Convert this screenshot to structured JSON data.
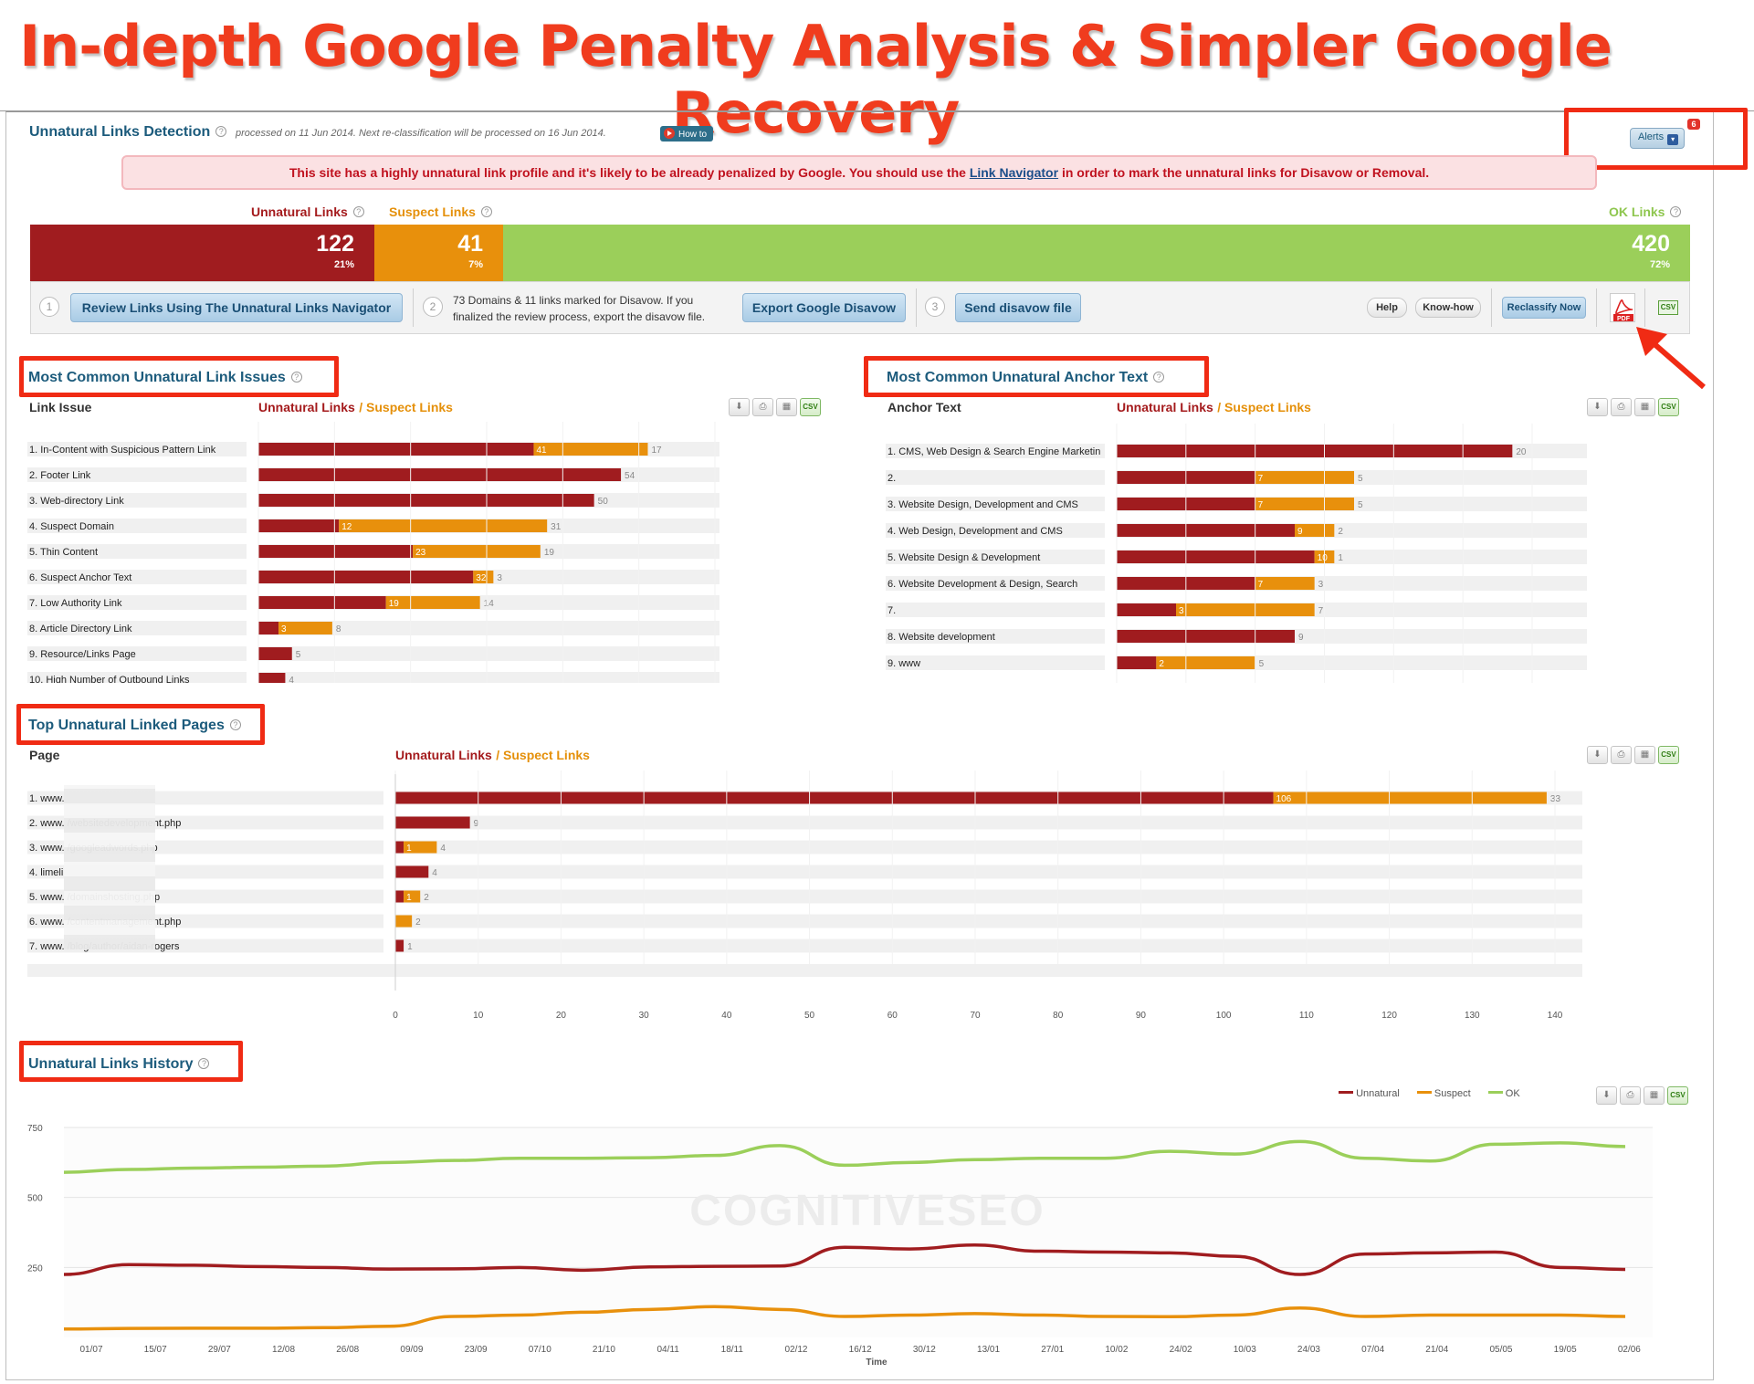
{
  "hero_title": "In-depth Google Penalty Analysis & Simpler Google Recovery",
  "header": {
    "title": "Unnatural Links Detection",
    "processed_text": "processed on 11 Jun 2014. Next re-classification will be processed on 16 Jun 2014.",
    "howto_label": "How to",
    "alerts_label": "Alerts",
    "alerts_count": "6"
  },
  "warning": {
    "text_before": "This site has a highly unnatural link profile and it's likely to be already penalized by Google. You should use the ",
    "link": "Link Navigator",
    "text_after": " in order to mark the unnatural links for Disavow or Removal."
  },
  "summary": {
    "unnatural_label": "Unnatural Links",
    "suspect_label": "Suspect Links",
    "ok_label": "OK Links",
    "unnatural_value": "122",
    "unnatural_pct": "21%",
    "suspect_value": "41",
    "suspect_pct": "7%",
    "ok_value": "420",
    "ok_pct": "72%",
    "colors": {
      "unnatural": "#a01c1f",
      "suspect": "#e8900c",
      "ok": "#9bcf5a"
    }
  },
  "actions": {
    "step1": "1",
    "step2": "2",
    "step3": "3",
    "review_btn": "Review Links Using The Unnatural Links Navigator",
    "disavow_text_1": "73 Domains & 11 links marked for Disavow. If you",
    "disavow_text_2": "finalized the review process, export the disavow file.",
    "export_btn": "Export Google Disavow",
    "send_btn": "Send disavow file",
    "help_btn": "Help",
    "knowhow_btn": "Know-how",
    "reclassify_btn": "Reclassify Now",
    "pdf_label": "PDF",
    "csv_label": "CSV"
  },
  "issues": {
    "title": "Most Common Unnatural Link Issues",
    "col_label": "Link Issue",
    "legend_unnatural": "Unnatural Links",
    "legend_suspect": "/ Suspect Links",
    "rows": [
      {
        "label": "1. In-Content with Suspicious Pattern Link",
        "unnatural": 41,
        "suspect": 17
      },
      {
        "label": "2. Footer Link",
        "unnatural": 54,
        "suspect": 0
      },
      {
        "label": "3. Web-directory Link",
        "unnatural": 50,
        "suspect": 0
      },
      {
        "label": "4. Suspect Domain",
        "unnatural": 12,
        "suspect": 31
      },
      {
        "label": "5. Thin Content",
        "unnatural": 23,
        "suspect": 19
      },
      {
        "label": "6. Suspect Anchor Text",
        "unnatural": 32,
        "suspect": 3
      },
      {
        "label": "7. Low Authority Link",
        "unnatural": 19,
        "suspect": 14
      },
      {
        "label": "8. Article Directory Link",
        "unnatural": 3,
        "suspect": 8
      },
      {
        "label": "9. Resource/Links Page",
        "unnatural": 5,
        "suspect": 0
      },
      {
        "label": "10. High Number of Outbound Links",
        "unnatural": 4,
        "suspect": 0
      }
    ]
  },
  "anchors": {
    "title": "Most Common Unnatural Anchor Text",
    "col_label": "Anchor Text",
    "legend_unnatural": "Unnatural Links",
    "legend_suspect": "/ Suspect Links",
    "rows": [
      {
        "label": "1. CMS, Web Design & Search Engine Marketin",
        "unnatural": 20,
        "suspect": 0
      },
      {
        "label": "2.",
        "unnatural": 7,
        "suspect": 5
      },
      {
        "label": "3. Website Design, Development and CMS",
        "unnatural": 7,
        "suspect": 5
      },
      {
        "label": "4. Web Design, Development and CMS",
        "unnatural": 9,
        "suspect": 2
      },
      {
        "label": "5. Website Design & Development",
        "unnatural": 10,
        "suspect": 1
      },
      {
        "label": "6. Website Development & Design, Search",
        "unnatural": 7,
        "suspect": 3
      },
      {
        "label": "7.",
        "unnatural": 3,
        "suspect": 7
      },
      {
        "label": "8. Website development",
        "unnatural": 9,
        "suspect": 0
      },
      {
        "label": "9. www",
        "unnatural": 2,
        "suspect": 5
      }
    ]
  },
  "pages": {
    "title": "Top Unnatural Linked Pages",
    "col_label": "Page",
    "legend_unnatural": "Unnatural Links",
    "legend_suspect": "/ Suspect Links",
    "rows": [
      {
        "label": "1. www.",
        "unnatural": 106,
        "suspect": 33
      },
      {
        "label": "2. www.                          /websitedevelopment.php",
        "unnatural": 9,
        "suspect": 0
      },
      {
        "label": "3. www.                          /googleadwords.php",
        "unnatural": 1,
        "suspect": 4
      },
      {
        "label": "4. limeli",
        "unnatural": 4,
        "suspect": 0
      },
      {
        "label": "5. www.                          /domainshosting.php",
        "unnatural": 1,
        "suspect": 2
      },
      {
        "label": "6. www.                          /contentmanagement.php",
        "unnatural": 0,
        "suspect": 2
      },
      {
        "label": "7. www.                          /blog/author/aidan-rogers",
        "unnatural": 1,
        "suspect": 0
      }
    ],
    "x_ticks": [
      0,
      10,
      20,
      30,
      40,
      50,
      60,
      70,
      80,
      90,
      100,
      110,
      120,
      130,
      140
    ]
  },
  "history": {
    "title": "Unnatural Links History",
    "legend": [
      "Unnatural",
      "Suspect",
      "OK"
    ],
    "watermark": "COGNITIVESEO",
    "x_label": "Time",
    "y_ticks": [
      750,
      500,
      250
    ]
  },
  "chart_data": [
    {
      "type": "bar",
      "title": "Most Common Unnatural Link Issues",
      "categories": [
        "1. In-Content with Suspicious Pattern Link",
        "2. Footer Link",
        "3. Web-directory Link",
        "4. Suspect Domain",
        "5. Thin Content",
        "6. Suspect Anchor Text",
        "7. Low Authority Link",
        "8. Article Directory Link",
        "9. Resource/Links Page",
        "10. High Number of Outbound Links"
      ],
      "series": [
        {
          "name": "Unnatural Links",
          "values": [
            41,
            54,
            50,
            12,
            23,
            32,
            19,
            3,
            5,
            4
          ]
        },
        {
          "name": "Suspect Links",
          "values": [
            17,
            0,
            0,
            31,
            19,
            3,
            14,
            8,
            0,
            0
          ]
        }
      ]
    },
    {
      "type": "bar",
      "title": "Most Common Unnatural Anchor Text",
      "categories": [
        "1. CMS, Web Design & Search Engine Marketin",
        "2.",
        "3. Website Design, Development and CMS",
        "4. Web Design, Development and CMS",
        "5. Website Design & Development",
        "6. Website Development & Design, Search",
        "7.",
        "8. Website development",
        "9. www"
      ],
      "series": [
        {
          "name": "Unnatural Links",
          "values": [
            20,
            7,
            7,
            9,
            10,
            7,
            3,
            9,
            2
          ]
        },
        {
          "name": "Suspect Links",
          "values": [
            0,
            5,
            5,
            2,
            1,
            3,
            7,
            0,
            5
          ]
        }
      ]
    },
    {
      "type": "bar",
      "title": "Top Unnatural Linked Pages",
      "categories": [
        "1",
        "2",
        "3",
        "4",
        "5",
        "6",
        "7"
      ],
      "series": [
        {
          "name": "Unnatural Links",
          "values": [
            106,
            9,
            1,
            4,
            1,
            0,
            1
          ]
        },
        {
          "name": "Suspect Links",
          "values": [
            33,
            0,
            4,
            0,
            2,
            2,
            0
          ]
        }
      ],
      "xlim": [
        0,
        140
      ]
    },
    {
      "type": "line",
      "title": "Unnatural Links History",
      "x": [
        "01/07",
        "15/07",
        "29/07",
        "12/08",
        "26/08",
        "09/09",
        "23/09",
        "07/10",
        "21/10",
        "04/11",
        "18/11",
        "02/12",
        "16/12",
        "30/12",
        "13/01",
        "27/01",
        "10/02",
        "24/02",
        "10/03",
        "24/03",
        "07/04",
        "21/04",
        "05/05",
        "19/05",
        "02/06"
      ],
      "xlabel": "Time",
      "ylim": [
        0,
        750
      ],
      "series": [
        {
          "name": "Unnatural",
          "values": [
            225,
            260,
            258,
            253,
            250,
            244,
            245,
            250,
            240,
            252,
            254,
            255,
            322,
            316,
            330,
            308,
            305,
            302,
            290,
            225,
            298,
            302,
            305,
            250,
            243
          ]
        },
        {
          "name": "Suspect",
          "values": [
            30,
            32,
            33,
            33,
            35,
            40,
            75,
            80,
            90,
            100,
            110,
            100,
            75,
            80,
            85,
            80,
            75,
            74,
            80,
            105,
            75,
            80,
            80,
            80,
            75
          ]
        },
        {
          "name": "OK",
          "values": [
            590,
            600,
            605,
            608,
            612,
            625,
            632,
            640,
            640,
            642,
            650,
            685,
            615,
            625,
            635,
            640,
            640,
            665,
            655,
            700,
            640,
            630,
            690,
            695,
            682
          ]
        }
      ]
    }
  ]
}
